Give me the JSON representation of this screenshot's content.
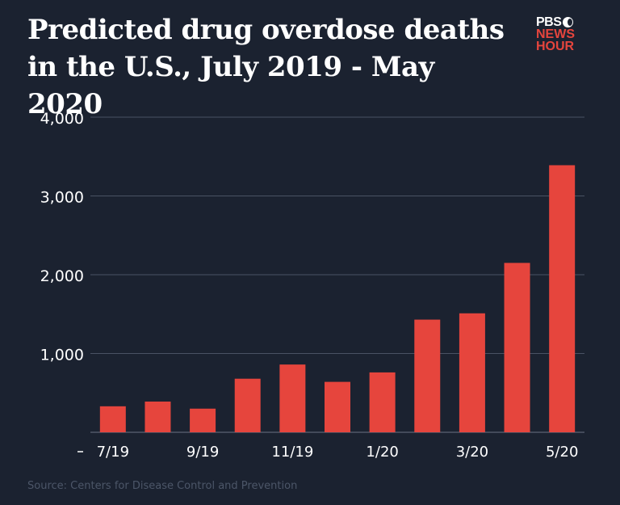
{
  "title_lines": [
    "Predicted drug overdose deaths",
    "in the U.S., July 2019 - May 2020"
  ],
  "logo": {
    "line1": "PBS",
    "line2": "NEWS",
    "line3": "HOUR"
  },
  "source": "Source: Centers for Disease Control and Prevention",
  "colors": {
    "background": "#1b2230",
    "bar": "#e6453d",
    "grid": "#4a5263",
    "text": "#ffffff",
    "logo_red": "#e6453d"
  },
  "chart_data": {
    "type": "bar",
    "title": "Predicted drug overdose deaths in the U.S., July 2019 - May 2020",
    "xlabel": "",
    "ylabel": "",
    "ylim": [
      0,
      4000
    ],
    "yticks": [
      0,
      1000,
      2000,
      3000,
      4000
    ],
    "ytick_labels": [
      "",
      "1,000",
      "2,000",
      "3,000",
      "4,000"
    ],
    "categories": [
      "7/19",
      "8/19",
      "9/19",
      "10/19",
      "11/19",
      "12/19",
      "1/20",
      "2/20",
      "3/20",
      "4/20",
      "5/20"
    ],
    "xtick_labels": [
      "7/19",
      "",
      "9/19",
      "",
      "11/19",
      "",
      "1/20",
      "",
      "3/20",
      "",
      "5/20"
    ],
    "values": [
      330,
      390,
      300,
      680,
      860,
      640,
      760,
      1430,
      1510,
      2150,
      3390
    ],
    "grid": true
  }
}
